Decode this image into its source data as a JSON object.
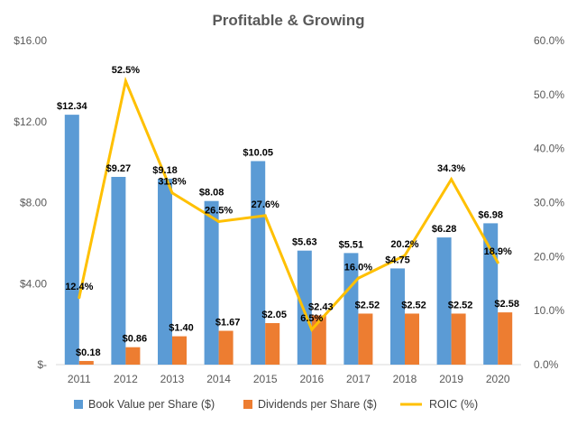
{
  "chart_data": {
    "type": "bar",
    "title": "Profitable & Growing",
    "categories": [
      "2011",
      "2012",
      "2013",
      "2014",
      "2015",
      "2016",
      "2017",
      "2018",
      "2019",
      "2020"
    ],
    "series": [
      {
        "name": "Book Value per Share ($)",
        "type": "bar",
        "axis": "left",
        "color": "#5B9BD5",
        "values": [
          12.34,
          9.27,
          9.18,
          8.08,
          10.05,
          5.63,
          5.51,
          4.75,
          6.28,
          6.98
        ],
        "labels": [
          "$12.34",
          "$9.27",
          "$9.18",
          "$8.08",
          "$10.05",
          "$5.63",
          "$5.51",
          "$4.75",
          "$6.28",
          "$6.98"
        ]
      },
      {
        "name": "Dividends per Share ($)",
        "type": "bar",
        "axis": "left",
        "color": "#ED7D31",
        "values": [
          0.18,
          0.86,
          1.4,
          1.67,
          2.05,
          2.43,
          2.52,
          2.52,
          2.52,
          2.58
        ],
        "labels": [
          "$0.18",
          "$0.86",
          "$1.40",
          "$1.67",
          "$2.05",
          "$2.43",
          "$2.52",
          "$2.52",
          "$2.52",
          "$2.58"
        ]
      },
      {
        "name": "ROIC (%)",
        "type": "line",
        "axis": "right",
        "color": "#FFC000",
        "values": [
          12.4,
          52.5,
          31.8,
          26.5,
          27.6,
          6.5,
          16.0,
          20.2,
          34.3,
          18.9
        ],
        "labels": [
          "12.4%",
          "52.5%",
          "31.8%",
          "26.5%",
          "27.6%",
          "6.5%",
          "16.0%",
          "20.2%",
          "34.3%",
          "18.9%"
        ]
      }
    ],
    "y_left": {
      "ylim": [
        0,
        16
      ],
      "ticks": [
        0,
        4,
        8,
        12,
        16
      ],
      "tick_labels": [
        "$-",
        "$4.00",
        "$8.00",
        "$12.00",
        "$16.00"
      ]
    },
    "y_right": {
      "ylim": [
        0,
        60
      ],
      "ticks": [
        0,
        10,
        20,
        30,
        40,
        50,
        60
      ],
      "tick_labels": [
        "0.0%",
        "10.0%",
        "20.0%",
        "30.0%",
        "40.0%",
        "50.0%",
        "60.0%"
      ]
    },
    "grid": false,
    "legend_position": "bottom"
  }
}
